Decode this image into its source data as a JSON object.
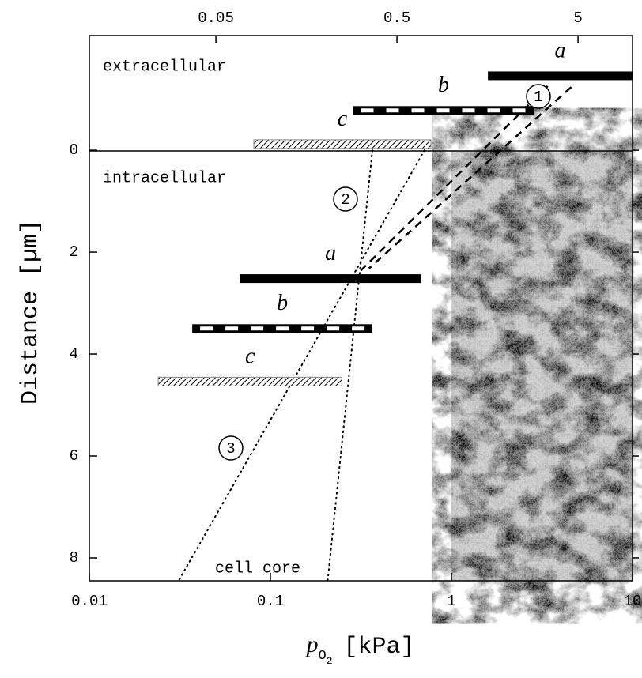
{
  "chart_data": {
    "type": "profile",
    "xscale": "log",
    "xlim": [
      0.01,
      10
    ],
    "ylim": [
      -2.25,
      8.45
    ],
    "xticks": [
      0.01,
      0.1,
      1,
      10
    ],
    "x2ticks": [
      0.05,
      0.5,
      5
    ],
    "yticks": [
      0,
      2,
      4,
      6,
      8
    ],
    "ylabel": "Distance [µm]",
    "xlabel": {
      "symbol": "p",
      "sub": "O",
      "subsub": "2",
      "unit": "[kPa]"
    },
    "regions": [
      "extracellular",
      "intracellular",
      "cell core"
    ],
    "bars": [
      {
        "label": "a",
        "style": "solid",
        "xrange": [
          1.59,
          10
        ],
        "depth": -1.46
      },
      {
        "label": "b",
        "style": "dashed",
        "xrange": [
          0.286,
          2.86
        ],
        "depth": -0.78
      },
      {
        "label": "c",
        "style": "hatched",
        "xrange": [
          0.081,
          0.77
        ],
        "depth": -0.12
      },
      {
        "label": "a",
        "style": "solid",
        "xrange": [
          0.068,
          0.68
        ],
        "depth": 2.52
      },
      {
        "label": "b",
        "style": "dashed",
        "xrange": [
          0.037,
          0.366
        ],
        "depth": 3.5
      },
      {
        "label": "c",
        "style": "hatched",
        "xrange": [
          0.024,
          0.248
        ],
        "depth": 4.54
      }
    ],
    "lines": [
      {
        "style": "dashed",
        "x": [
          3.4,
          0.316
        ],
        "y": [
          -1.26,
          2.36
        ]
      },
      {
        "style": "dashed",
        "x": [
          4.59,
          0.35
        ],
        "y": [
          -1.24,
          2.32
        ]
      },
      {
        "style": "dotted",
        "x": [
          0.366,
          0.207
        ],
        "y": [
          0,
          8.46
        ]
      },
      {
        "style": "dotted",
        "x": [
          0.71,
          0.031
        ],
        "y": [
          0,
          8.46
        ]
      }
    ],
    "annotations": [
      "1",
      "2",
      "3"
    ]
  }
}
